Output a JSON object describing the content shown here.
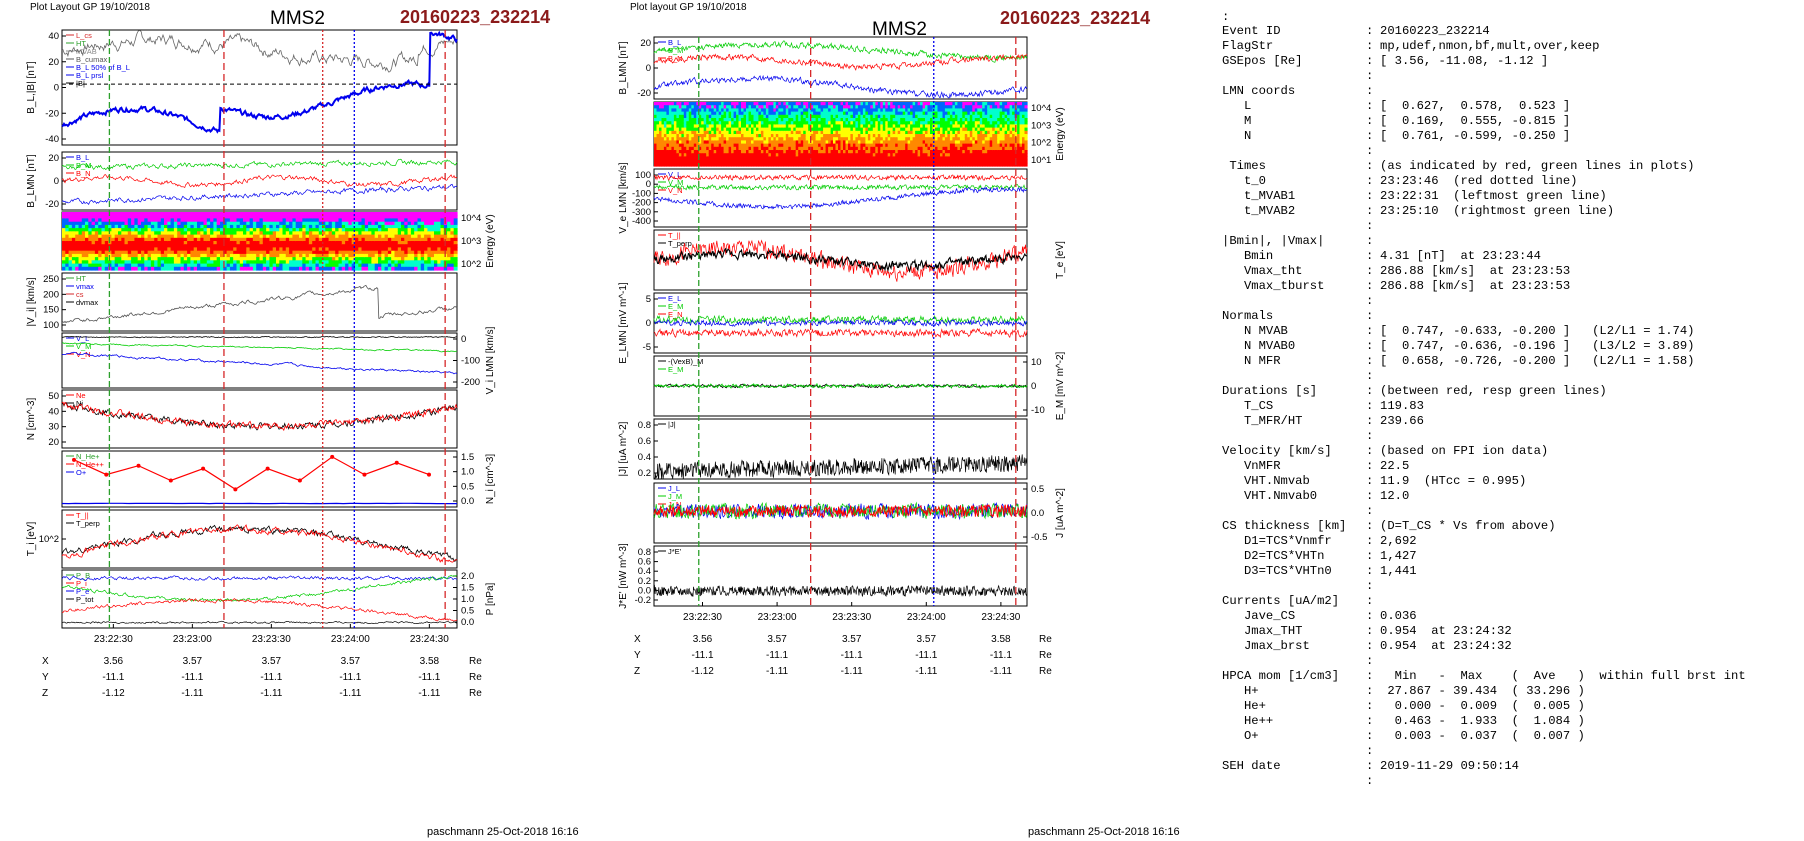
{
  "left": {
    "header_left": "Plot Layout GP 19/10/2018",
    "mission": "MMS2",
    "event": "20160223_232214",
    "footer": "paschmann 25-Oct-2018 16:16",
    "panels": [
      {
        "ylabel": "B_L,|B| [nT]",
        "side": "left",
        "ticks": [
          "40",
          "20",
          "0",
          "-20",
          "-40"
        ],
        "legend": [
          "L_cs",
          "HT",
          "MVAB",
          "B_cumax",
          "B_L 50% of B_L",
          "B_L prsl",
          "|B|"
        ],
        "legend_colors": [
          "#d62728",
          "#2ca02c",
          "#8c8c8c",
          "#555555",
          "#0000ee",
          "#0000ee",
          "#000000"
        ]
      },
      {
        "ylabel": "B_LMN [nT]",
        "side": "left",
        "ticks": [
          "20",
          "0",
          "-20"
        ],
        "legend": [
          "B_L",
          "B_M",
          "B_N"
        ],
        "legend_colors": [
          "#0000ee",
          "#00cc00",
          "#ff0000"
        ]
      },
      {
        "ylabel": "Energy (eV)",
        "side": "right",
        "ticks": [
          "10^4",
          "10^3",
          "10^2"
        ],
        "legend": []
      },
      {
        "ylabel": "|V_i| [km/s]",
        "side": "left",
        "ticks": [
          "250",
          "200",
          "150",
          "100"
        ],
        "legend": [
          "HT",
          "vmax",
          "cs",
          "dvmax"
        ],
        "legend_colors": [
          "#2ca02c",
          "#0000ee",
          "#d62728",
          "#000000"
        ]
      },
      {
        "ylabel": "V_i LMN [km/s]",
        "side": "right",
        "ticks": [
          "0",
          "-100",
          "-200"
        ],
        "legend": [
          "V_L",
          "V_M",
          "V_N"
        ],
        "legend_colors": [
          "#0000ee",
          "#00cc00",
          "#ff0000"
        ]
      },
      {
        "ylabel": "N [cm^-3]",
        "side": "left",
        "ticks": [
          "50",
          "40",
          "30",
          "20"
        ],
        "legend": [
          "Ne",
          "Ni"
        ],
        "legend_colors": [
          "#ff0000",
          "#000000"
        ]
      },
      {
        "ylabel": "N_i [cm^-3]",
        "side": "right",
        "ticks": [
          "1.5",
          "1.0",
          "0.5",
          "0.0"
        ],
        "legend": [
          "N_He+",
          "N_He++",
          "O+"
        ],
        "legend_colors": [
          "#2ca02c",
          "#ff0000",
          "#0000ee"
        ]
      },
      {
        "ylabel": "T_i [eV]",
        "side": "left",
        "ticks": [
          "10^2"
        ],
        "legend": [
          "T_||",
          "T_perp"
        ],
        "legend_colors": [
          "#ff0000",
          "#000000"
        ]
      },
      {
        "ylabel": "P [nPa]",
        "side": "right",
        "ticks": [
          "2.0",
          "1.5",
          "1.0",
          "0.5",
          "0.0"
        ],
        "legend": [
          "P_B",
          "P_i",
          "P_e",
          "P_tot"
        ],
        "legend_colors": [
          "#2ca02c",
          "#ff0000",
          "#0000ee",
          "#000000"
        ]
      }
    ],
    "time_ticks": [
      "23:22:30",
      "23:23:00",
      "23:23:30",
      "23:24:00",
      "23:24:30"
    ],
    "eph_values": {
      "X": [
        "3.56",
        "3.57",
        "3.57",
        "3.57",
        "3.58"
      ],
      "Y": [
        "-11.1",
        "-11.1",
        "-11.1",
        "-11.1",
        "-11.1"
      ],
      "Z": [
        "-1.12",
        "-1.11",
        "-1.11",
        "-1.11",
        "-1.11"
      ]
    }
  },
  "right": {
    "header_left": "Plot layout GP 19/10/2018",
    "mission": "MMS2",
    "event": "20160223_232214",
    "footer": "paschmann 25-Oct-2018 16:16",
    "panels": [
      {
        "ylabel": "B_LMN [nT]",
        "side": "left",
        "ticks": [
          "20",
          "0",
          "-20"
        ],
        "legend": [
          "B_L",
          "B_M",
          "B_N"
        ],
        "legend_colors": [
          "#0000ee",
          "#00cc00",
          "#ff0000"
        ]
      },
      {
        "ylabel": "Energy (eV)",
        "side": "right",
        "ticks": [
          "10^4",
          "10^3",
          "10^2",
          "10^1"
        ],
        "legend": []
      },
      {
        "ylabel": "V_e LMN [km/s]",
        "side": "left",
        "ticks": [
          "100",
          "0",
          "-100",
          "-200",
          "-300",
          "-400"
        ],
        "legend": [
          "V_L",
          "V_M",
          "V_N"
        ],
        "legend_colors": [
          "#0000ee",
          "#00cc00",
          "#ff0000"
        ]
      },
      {
        "ylabel": "T_e [eV]",
        "side": "right",
        "ticks": [],
        "legend": [
          "T_||",
          "T_perp"
        ],
        "legend_colors": [
          "#ff0000",
          "#000000"
        ]
      },
      {
        "ylabel": "E_LMN [mV m^-1]",
        "side": "left",
        "ticks": [
          "5",
          "0",
          "-5"
        ],
        "legend": [
          "E_L",
          "E_M",
          "E_N"
        ],
        "legend_colors": [
          "#0000ee",
          "#00cc00",
          "#ff0000"
        ]
      },
      {
        "ylabel": "E_M [mV m^-2]",
        "side": "right",
        "ticks": [
          "10",
          "0",
          "-10"
        ],
        "legend": [
          "-(VexB)_M",
          "E_M"
        ],
        "legend_colors": [
          "#000000",
          "#00cc00"
        ]
      },
      {
        "ylabel": "|J| [uA m^-2]",
        "side": "left",
        "ticks": [
          "0.8",
          "0.6",
          "0.4",
          "0.2"
        ],
        "legend": [
          "|J|"
        ],
        "legend_colors": [
          "#000000"
        ]
      },
      {
        "ylabel": "J [uA m^-2]",
        "side": "right",
        "ticks": [
          "0.5",
          "0.0",
          "-0.5"
        ],
        "legend": [
          "J_L",
          "J_M",
          "J_N"
        ],
        "legend_colors": [
          "#0000ee",
          "#00cc00",
          "#ff0000"
        ]
      },
      {
        "ylabel": "J*E' [nW m^-3]",
        "side": "left",
        "ticks": [
          "0.8",
          "0.6",
          "0.4",
          "0.2",
          "0.0",
          "-0.2"
        ],
        "legend": [
          "J*E'"
        ],
        "legend_colors": [
          "#000000"
        ]
      }
    ],
    "time_ticks": [
      "23:22:30",
      "23:23:00",
      "23:23:30",
      "23:24:00",
      "23:24:30"
    ],
    "eph_values": {
      "X": [
        "3.56",
        "3.57",
        "3.57",
        "3.57",
        "3.58"
      ],
      "Y": [
        "-11.1",
        "-11.1",
        "-11.1",
        "-11.1",
        "-11.1"
      ],
      "Z": [
        "-1.12",
        "-1.11",
        "-1.11",
        "-1.11",
        "-1.11"
      ]
    }
  },
  "eph_unit": "Re",
  "info": {
    "top_mark": ":",
    "rows": [
      {
        "k": "Event ID",
        "v": "20160223_232214"
      },
      {
        "k": "FlagStr",
        "v": "mp,udef,nmon,bf,mult,over,keep"
      },
      {
        "k": "GSEpos [Re]",
        "v": "[ 3.56, -11.08, -1.12 ]"
      },
      {
        "k": "",
        "v": ""
      },
      {
        "k": "LMN coords",
        "v": ""
      },
      {
        "k": "   L",
        "v": "[  0.627,  0.578,  0.523 ]"
      },
      {
        "k": "   M",
        "v": "[  0.169,  0.555, -0.815 ]"
      },
      {
        "k": "   N",
        "v": "[  0.761, -0.599, -0.250 ]"
      },
      {
        "k": "",
        "v": ""
      },
      {
        "k": " Times",
        "v": "(as indicated by red, green lines in plots)"
      },
      {
        "k": "   t_0",
        "v": "23:23:46  (red dotted line)"
      },
      {
        "k": "   t_MVAB1",
        "v": "23:22:31  (leftmost green line)"
      },
      {
        "k": "   t_MVAB2",
        "v": "23:25:10  (rightmost green line)"
      },
      {
        "k": "",
        "v": ""
      },
      {
        "k": "|Bmin|, |Vmax|",
        "v": ""
      },
      {
        "k": "   Bmin",
        "v": "4.31 [nT]  at 23:23:44"
      },
      {
        "k": "   Vmax_tht",
        "v": "286.88 [km/s]  at 23:23:53"
      },
      {
        "k": "   Vmax_tburst",
        "v": "286.88 [km/s]  at 23:23:53"
      },
      {
        "k": "",
        "v": ""
      },
      {
        "k": "Normals",
        "v": ""
      },
      {
        "k": "   N MVAB",
        "v": "[  0.747, -0.633, -0.200 ]   (L2/L1 = 1.74)"
      },
      {
        "k": "   N MVAB0",
        "v": "[  0.747, -0.636, -0.196 ]   (L3/L2 = 3.89)"
      },
      {
        "k": "   N MFR",
        "v": "[  0.658, -0.726, -0.200 ]   (L2/L1 = 1.58)"
      },
      {
        "k": "",
        "v": ""
      },
      {
        "k": "Durations [s]",
        "v": "(between red, resp green lines)"
      },
      {
        "k": "   T_CS",
        "v": "119.83"
      },
      {
        "k": "   T_MFR/HT",
        "v": "239.66"
      },
      {
        "k": "",
        "v": ""
      },
      {
        "k": "Velocity [km/s]",
        "v": "(based on FPI ion data)"
      },
      {
        "k": "   VnMFR",
        "v": "22.5"
      },
      {
        "k": "   VHT.Nmvab",
        "v": "11.9  (HTcc = 0.995)"
      },
      {
        "k": "   VHT.Nmvab0",
        "v": "12.0"
      },
      {
        "k": "",
        "v": ""
      },
      {
        "k": "CS thickness [km]",
        "v": "(D=T_CS * Vs from above)"
      },
      {
        "k": "   D1=TCS*Vnmfr",
        "v": "2,692"
      },
      {
        "k": "   D2=TCS*VHTn",
        "v": "1,427"
      },
      {
        "k": "   D3=TCS*VHTn0",
        "v": "1,441"
      },
      {
        "k": "",
        "v": ""
      },
      {
        "k": "Currents [uA/m2]",
        "v": ""
      },
      {
        "k": "   Jave_CS",
        "v": "0.036"
      },
      {
        "k": "   Jmax_THT",
        "v": "0.954  at 23:24:32"
      },
      {
        "k": "   Jmax_brst",
        "v": "0.954  at 23:24:32"
      },
      {
        "k": "",
        "v": ""
      },
      {
        "k": "HPCA mom [1/cm3]",
        "v": "  Min   -  Max    (  Ave   )  within full brst int"
      },
      {
        "k": "   H+",
        "v": " 27.867 - 39.434  ( 33.296 )"
      },
      {
        "k": "   He+",
        "v": "  0.000 -  0.009  (  0.005 )"
      },
      {
        "k": "   He++",
        "v": "  0.463 -  1.933  (  1.084 )"
      },
      {
        "k": "   O+",
        "v": "  0.003 -  0.037  (  0.007 )"
      },
      {
        "k": "",
        "v": ""
      },
      {
        "k": "SEH date",
        "v": "2019-11-29 09:50:14"
      },
      {
        "k": "",
        "v": ""
      }
    ]
  },
  "chart_data": [
    {
      "type": "line",
      "title": "MMS2 20160223_232214",
      "x": [
        "23:22:30",
        "23:23:00",
        "23:23:30",
        "23:24:00",
        "23:24:30"
      ],
      "series": [
        {
          "name": "B_L",
          "values": [
            -25,
            -30,
            -5,
            5,
            25
          ]
        },
        {
          "name": "|B|",
          "values": [
            30,
            35,
            30,
            20,
            40
          ]
        },
        {
          "name": "|V_i|",
          "values": [
            130,
            170,
            220,
            260,
            160
          ]
        },
        {
          "name": "N",
          "values": [
            45,
            42,
            35,
            30,
            40
          ]
        },
        {
          "name": "N_He++",
          "values": [
            1.5,
            1.0,
            1.3,
            1.6,
            1.0
          ]
        }
      ]
    },
    {
      "type": "line",
      "title": "MMS2 20160223_232214",
      "x": [
        "23:22:30",
        "23:23:00",
        "23:23:30",
        "23:24:00",
        "23:24:30"
      ],
      "series": [
        {
          "name": "|J|",
          "values": [
            0.1,
            0.2,
            0.3,
            0.25,
            0.4
          ]
        },
        {
          "name": "J*E'",
          "values": [
            0.0,
            0.05,
            0.2,
            0.1,
            0.1
          ]
        }
      ]
    }
  ]
}
